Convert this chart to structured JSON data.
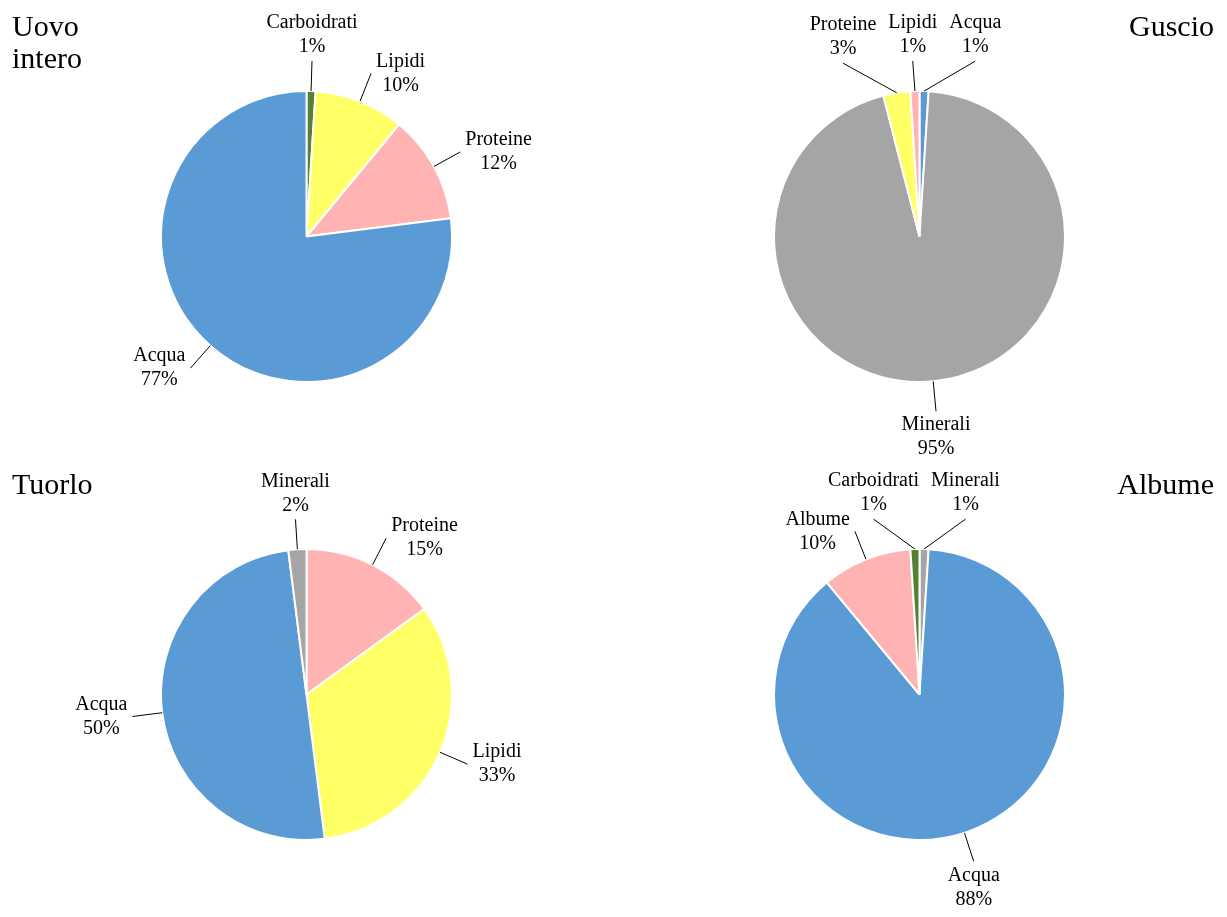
{
  "chart_data": [
    {
      "type": "pie",
      "title": "Uovo intero",
      "categories": [
        "Carboidrati",
        "Lipidi",
        "Proteine",
        "Acqua"
      ],
      "values": [
        1,
        10,
        12,
        77
      ],
      "value_labels": [
        "1%",
        "10%",
        "12%",
        "77%"
      ],
      "colors": [
        "#548235",
        "#ffff66",
        "#ffb3b3",
        "#5b9bd5"
      ],
      "legend": false
    },
    {
      "type": "pie",
      "title": "Guscio",
      "categories": [
        "Acqua",
        "Minerali",
        "Proteine",
        "Lipidi"
      ],
      "values": [
        1,
        95,
        3,
        1
      ],
      "value_labels": [
        "1%",
        "95%",
        "3%",
        "1%"
      ],
      "colors": [
        "#5b9bd5",
        "#a5a5a5",
        "#ffff66",
        "#ffb3b3"
      ],
      "legend": false
    },
    {
      "type": "pie",
      "title": "Tuorlo",
      "categories": [
        "Proteine",
        "Lipidi",
        "Acqua",
        "Minerali"
      ],
      "values": [
        15,
        33,
        50,
        2
      ],
      "value_labels": [
        "15%",
        "33%",
        "50%",
        "2%"
      ],
      "colors": [
        "#ffb3b3",
        "#ffff66",
        "#5b9bd5",
        "#a5a5a5"
      ],
      "legend": false
    },
    {
      "type": "pie",
      "title": "Albume",
      "categories": [
        "Minerali",
        "Acqua",
        "Albume",
        "Carboidrati"
      ],
      "values": [
        1,
        88,
        10,
        1
      ],
      "value_labels": [
        "1%",
        "88%",
        "10%",
        "1%"
      ],
      "colors": [
        "#a5a5a5",
        "#5b9bd5",
        "#ffb3b3",
        "#548235"
      ],
      "legend": false
    }
  ]
}
